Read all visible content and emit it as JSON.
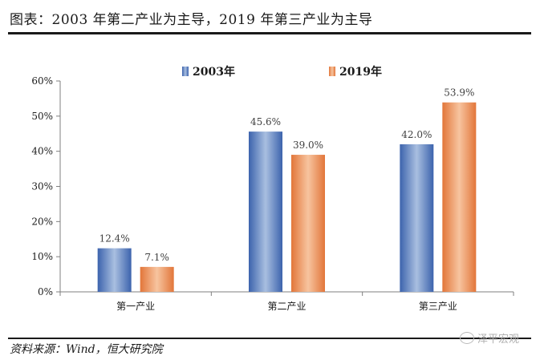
{
  "header": {
    "title": "图表：2003 年第二产业为主导，2019 年第三产业为主导"
  },
  "footer": {
    "source": "资料来源：Wind，恒大研究院",
    "watermark": "泽平宏观"
  },
  "colors": {
    "series_2003": "#4a72b8",
    "series_2019": "#e8864a",
    "axis": "#7f7f7f",
    "text": "#1a1a1a"
  },
  "chart_data": {
    "type": "bar",
    "title": "",
    "xlabel": "",
    "ylabel": "",
    "categories": [
      "第一产业",
      "第二产业",
      "第三产业"
    ],
    "series": [
      {
        "name": "2003年",
        "values": [
          12.4,
          45.6,
          42.0
        ],
        "labels": [
          "12.4%",
          "45.6%",
          "42.0%"
        ]
      },
      {
        "name": "2019年",
        "values": [
          7.1,
          39.0,
          53.9
        ],
        "labels": [
          "7.1%",
          "39.0%",
          "53.9%"
        ]
      }
    ],
    "ylim": [
      0,
      60
    ],
    "yticks": [
      0,
      10,
      20,
      30,
      40,
      50,
      60
    ],
    "ytick_labels": [
      "0%",
      "10%",
      "20%",
      "30%",
      "40%",
      "50%",
      "60%"
    ],
    "grid": false,
    "legend_position": "top-center"
  }
}
